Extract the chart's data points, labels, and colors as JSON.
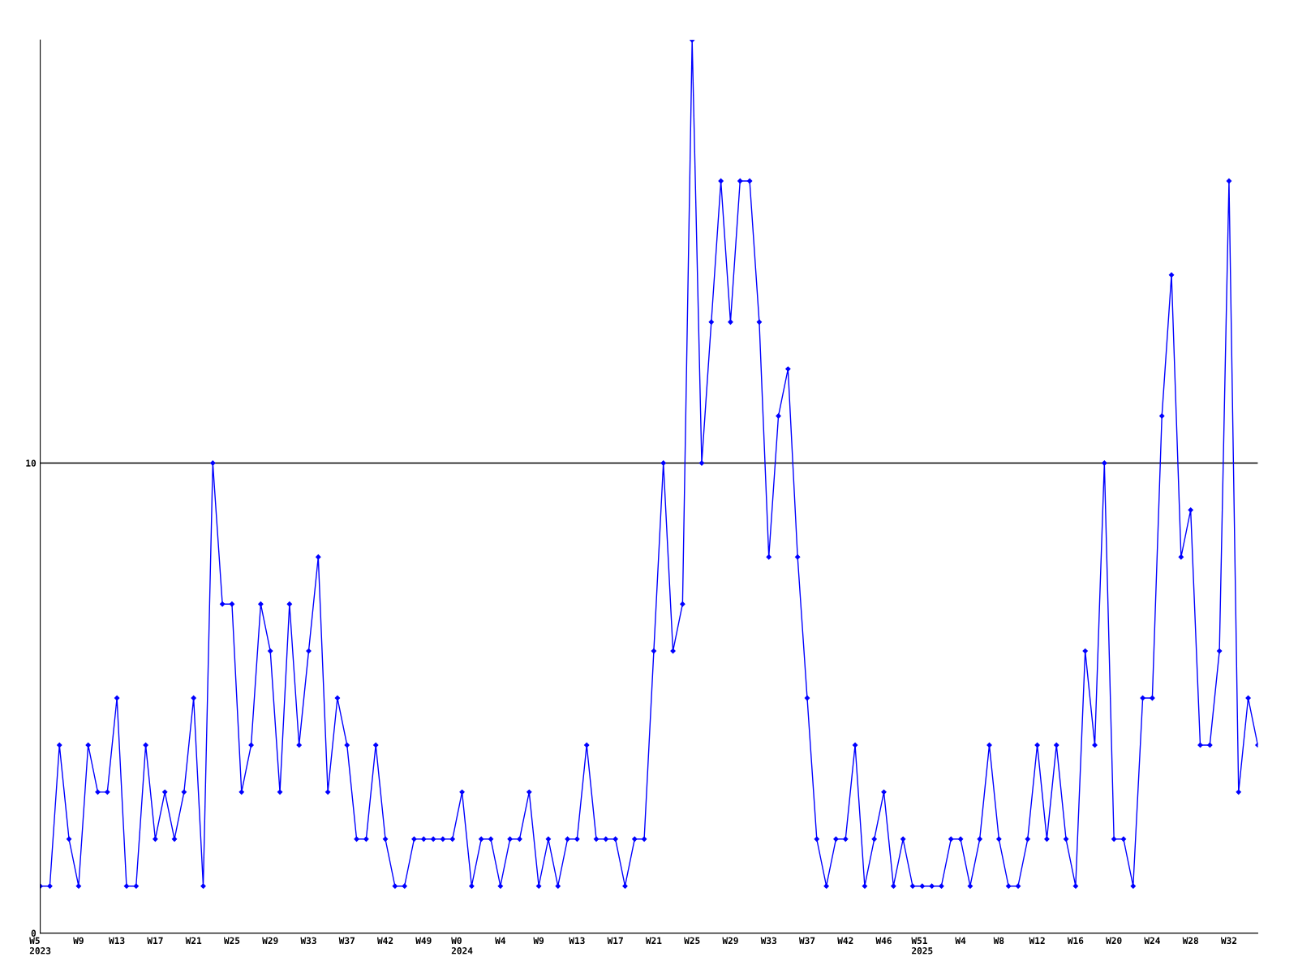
{
  "chart_data": {
    "type": "line",
    "categories": [
      "W5\n2023",
      null,
      null,
      null,
      "W9",
      null,
      null,
      null,
      "W13",
      null,
      null,
      null,
      "W17",
      null,
      null,
      null,
      "W21",
      null,
      null,
      null,
      "W25",
      null,
      null,
      null,
      "W29",
      null,
      null,
      null,
      "W33",
      null,
      null,
      null,
      "W37",
      null,
      null,
      null,
      "W42",
      null,
      null,
      null,
      "W49",
      null,
      null,
      null,
      "W0\n2024",
      null,
      null,
      null,
      "W4",
      null,
      null,
      null,
      "W9",
      null,
      null,
      null,
      "W13",
      null,
      null,
      null,
      "W17",
      null,
      null,
      null,
      "W21",
      null,
      null,
      null,
      "W25",
      null,
      null,
      null,
      "W29",
      null,
      null,
      null,
      "W33",
      null,
      null,
      null,
      "W37",
      null,
      null,
      null,
      "W42",
      null,
      null,
      null,
      "W46",
      null,
      null,
      null,
      "W51\n2025",
      null,
      null,
      null,
      "W4",
      null,
      null,
      null,
      "W8",
      null,
      null,
      null,
      "W12",
      null,
      null,
      null,
      "W16",
      null,
      null,
      null,
      "W20",
      null,
      null,
      null,
      "W24",
      null,
      null,
      null,
      "W28",
      null,
      null,
      null,
      "W32",
      null,
      null,
      null
    ],
    "series": [
      {
        "color": "#0000ff",
        "values": [
          1,
          1,
          4,
          2,
          1,
          4,
          3,
          3,
          5,
          1,
          1,
          4,
          2,
          3,
          2,
          3,
          5,
          1,
          10,
          7,
          7,
          3,
          4,
          7,
          6,
          3,
          7,
          4,
          6,
          8,
          3,
          5,
          4,
          2,
          2,
          4,
          2,
          1,
          1,
          2,
          2,
          2,
          2,
          2,
          3,
          1,
          2,
          2,
          1,
          2,
          2,
          3,
          1,
          2,
          1,
          2,
          2,
          4,
          2,
          2,
          2,
          1,
          2,
          2,
          6,
          10,
          6,
          7,
          19,
          10,
          13,
          16,
          13,
          16,
          16,
          13,
          8,
          11,
          12,
          8,
          5,
          2,
          1,
          2,
          2,
          4,
          1,
          2,
          3,
          1,
          2,
          1,
          1,
          1,
          1,
          2,
          2,
          1,
          2,
          4,
          2,
          1,
          1,
          2,
          4,
          2,
          4,
          2,
          1,
          6,
          4,
          10,
          2,
          2,
          1,
          5,
          5,
          11,
          14,
          8,
          9,
          4,
          4,
          6,
          16,
          3,
          5,
          4
        ]
      }
    ],
    "ylim": [
      0,
      19
    ],
    "yticks": [
      0,
      10
    ],
    "grid": "y",
    "marker": "diamond",
    "line_style": "solid"
  }
}
